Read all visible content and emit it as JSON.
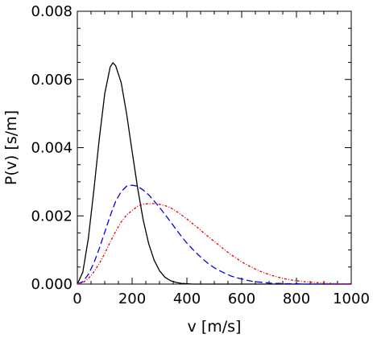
{
  "chart_data": {
    "type": "line",
    "xlabel": "v [m/s]",
    "ylabel": "P(v) [s/m]",
    "xlim": [
      0,
      1000
    ],
    "ylim": [
      0,
      0.008
    ],
    "x_ticks": [
      "0",
      "200",
      "400",
      "600",
      "800",
      "1000"
    ],
    "y_ticks": [
      "0.000",
      "0.002",
      "0.004",
      "0.006",
      "0.008"
    ],
    "grid": false,
    "x": [
      0,
      20,
      40,
      60,
      80,
      100,
      120,
      130,
      140,
      160,
      180,
      200,
      220,
      240,
      260,
      280,
      300,
      320,
      340,
      360,
      380,
      400,
      420,
      440,
      460,
      480,
      500,
      520,
      540,
      560,
      580,
      600,
      620,
      640,
      660,
      680,
      700,
      720,
      740,
      760,
      780,
      800,
      820,
      840,
      860,
      880,
      900,
      920,
      940,
      960,
      980,
      1000
    ],
    "series": [
      {
        "color": "#000000",
        "dash": "solid",
        "values": [
          0,
          0.00035,
          0.00133,
          0.00273,
          0.00425,
          0.00558,
          0.00637,
          0.00649,
          0.0064,
          0.00591,
          0.00499,
          0.00389,
          0.00282,
          0.0019,
          0.0012,
          0.00071,
          0.00039,
          0.0002,
          0.0001,
          5e-05,
          2e-05,
          1e-05,
          0,
          0,
          0,
          0,
          0,
          0,
          0,
          0,
          0,
          0,
          0,
          0,
          0,
          0,
          0,
          0,
          0,
          0,
          0,
          0,
          0,
          0,
          0,
          0,
          0,
          0,
          0,
          0,
          0,
          0
        ]
      },
      {
        "color": "#0000ee",
        "dash": "dashed",
        "values": [
          0,
          7e-05,
          0.00028,
          0.00061,
          0.00104,
          0.00152,
          0.002,
          0.00222,
          0.00243,
          0.00271,
          0.00287,
          0.0029,
          0.00287,
          0.00276,
          0.00262,
          0.00244,
          0.00225,
          0.00204,
          0.00183,
          0.00161,
          0.0014,
          0.0012,
          0.00103,
          0.00087,
          0.00072,
          0.00059,
          0.00048,
          0.00039,
          0.00031,
          0.00024,
          0.00019,
          0.00015,
          0.00011,
          8e-05,
          6e-05,
          5e-05,
          3e-05,
          2e-05,
          2e-05,
          1e-05,
          1e-05,
          1e-05,
          0,
          0,
          0,
          0,
          0,
          0,
          0,
          0,
          0,
          0
        ]
      },
      {
        "color": "#ee0000",
        "dash": "dash-dot",
        "values": [
          0,
          4e-05,
          0.00016,
          0.00035,
          0.0006,
          0.0009,
          0.00123,
          0.00139,
          0.00155,
          0.00182,
          0.00203,
          0.00216,
          0.00228,
          0.00234,
          0.00236,
          0.00236,
          0.00234,
          0.0023,
          0.00224,
          0.00214,
          0.00203,
          0.00191,
          0.00178,
          0.00165,
          0.00151,
          0.00138,
          0.00125,
          0.00112,
          0.00099,
          0.00087,
          0.00076,
          0.00065,
          0.00056,
          0.00048,
          0.0004,
          0.00034,
          0.00028,
          0.00023,
          0.00019,
          0.00015,
          0.00012,
          0.0001,
          8e-05,
          6e-05,
          5e-05,
          4e-05,
          3e-05,
          2e-05,
          2e-05,
          1e-05,
          1e-05,
          1e-05
        ]
      }
    ]
  }
}
